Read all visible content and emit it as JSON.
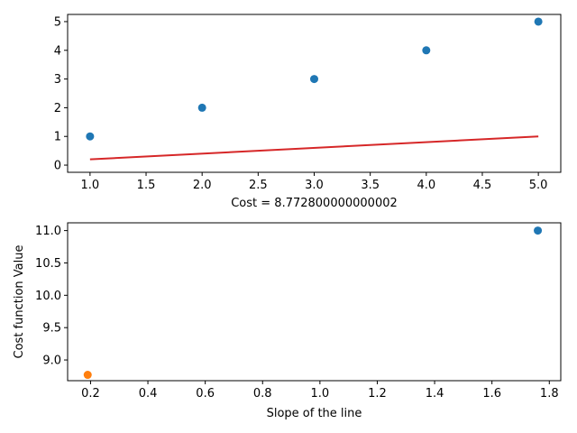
{
  "colors": {
    "series_blue": "#1f77b4",
    "series_orange": "#ff7f0e",
    "fit_line": "#d62728"
  },
  "chart_data": [
    {
      "type": "scatter",
      "title": "",
      "xlabel": "Cost = 8.772800000000002",
      "ylabel": "",
      "xlim": [
        0.8,
        5.2
      ],
      "ylim": [
        -0.25,
        5.25
      ],
      "xticks": [
        "1.0",
        "1.5",
        "2.0",
        "2.5",
        "3.0",
        "3.5",
        "4.0",
        "4.5",
        "5.0"
      ],
      "yticks": [
        "0",
        "1",
        "2",
        "3",
        "4",
        "5"
      ],
      "grid": false,
      "series": [
        {
          "type": "scatter",
          "color": "#1f77b4",
          "x": [
            1,
            2,
            3,
            4,
            5
          ],
          "y": [
            1,
            2,
            3,
            4,
            5
          ]
        },
        {
          "type": "line",
          "color": "#d62728",
          "x": [
            1,
            5
          ],
          "y": [
            0.2,
            1.0
          ]
        }
      ]
    },
    {
      "type": "scatter",
      "title": "",
      "xlabel": "Slope of the line",
      "ylabel": "Cost function Value",
      "xlim": [
        0.12,
        1.84
      ],
      "ylim": [
        8.68,
        11.12
      ],
      "xticks": [
        "0.2",
        "0.4",
        "0.6",
        "0.8",
        "1.0",
        "1.2",
        "1.4",
        "1.6",
        "1.8"
      ],
      "yticks": [
        "9.0",
        "9.5",
        "10.0",
        "10.5",
        "11.0"
      ],
      "grid": false,
      "series": [
        {
          "type": "scatter",
          "color": "#1f77b4",
          "x": [
            1.76
          ],
          "y": [
            11.0
          ]
        },
        {
          "type": "scatter",
          "color": "#ff7f0e",
          "x": [
            0.19
          ],
          "y": [
            8.77
          ]
        }
      ]
    }
  ]
}
